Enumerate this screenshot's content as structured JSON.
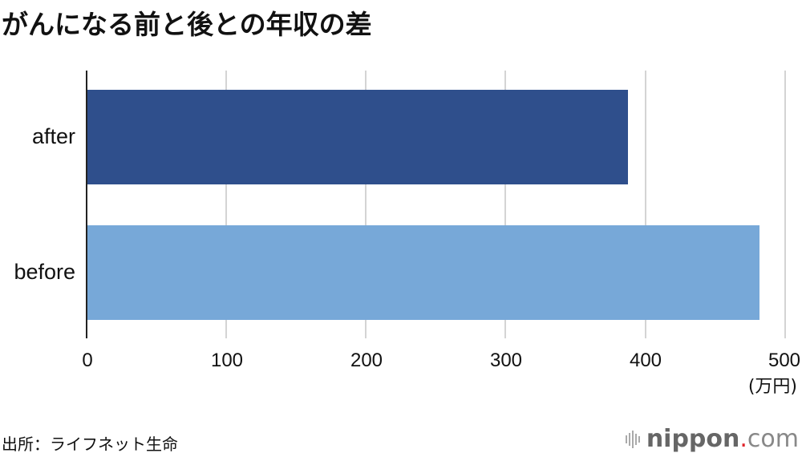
{
  "title": "がんになる前と後との年収の差",
  "chart_data": {
    "type": "bar",
    "orientation": "horizontal",
    "title": "がんになる前と後との年収の差",
    "categories": [
      "after",
      "before"
    ],
    "values": [
      387,
      481
    ],
    "colors": [
      "#2f4f8c",
      "#77a8d8"
    ],
    "xlabel": "(万円)",
    "ylabel": "",
    "xlim": [
      0,
      500
    ],
    "xticks": [
      "0",
      "100",
      "200",
      "300",
      "400",
      "500"
    ],
    "grid": true
  },
  "axis": {
    "ticks": [
      "0",
      "100",
      "200",
      "300",
      "400",
      "500"
    ],
    "unit": "(万円)"
  },
  "categories": {
    "after": "after",
    "before": "before"
  },
  "source": "出所：ライフネット生命",
  "logo": {
    "name": "nippon",
    "dot": ".",
    "suffix": "com"
  }
}
